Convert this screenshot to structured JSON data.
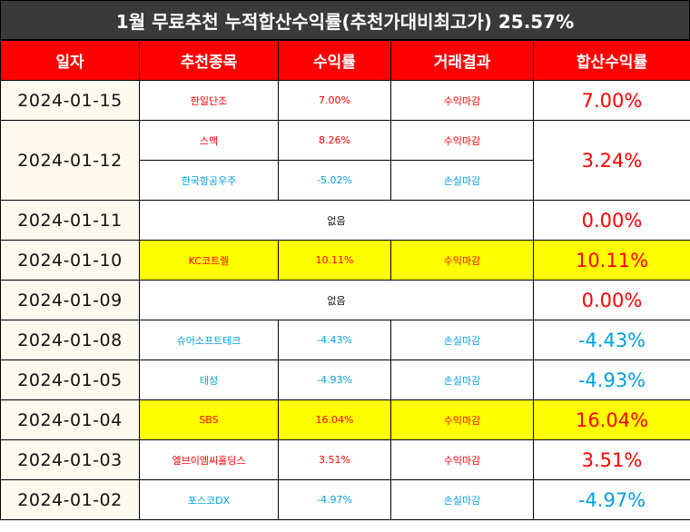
{
  "title": "1월 무료추천 누적합산수익률(추천가대비최고가) 25.57%",
  "headers": [
    "일자",
    "추천종목",
    "수익률",
    "거래결과",
    "합산수익률"
  ],
  "rows": [
    {
      "date": "2024-01-15",
      "stock": "한일단조",
      "rate": "7.00%",
      "result": "수익마감",
      "total": "7.00%"
    },
    {
      "date": "2024-01-12",
      "stock": "스맥",
      "rate": "8.26%",
      "result": "수익마감",
      "total": "3.24%"
    },
    {
      "stock": "한국항공우주",
      "rate": "-5.02%",
      "result": "손실마감"
    },
    {
      "date": "2024-01-11",
      "none": "없음",
      "total": "0.00%"
    },
    {
      "date": "2024-01-10",
      "stock": "KC코트렐",
      "rate": "10.11%",
      "result": "수익마감",
      "total": "10.11%"
    },
    {
      "date": "2024-01-09",
      "none": "없음",
      "total": "0.00%"
    },
    {
      "date": "2024-01-08",
      "stock": "슈어소프트테크",
      "rate": "-4.43%",
      "result": "손실마감",
      "total": "-4.43%"
    },
    {
      "date": "2024-01-05",
      "stock": "태성",
      "rate": "-4.93%",
      "result": "손실마감",
      "total": "-4.93%"
    },
    {
      "date": "2024-01-04",
      "stock": "SBS",
      "rate": "16.04%",
      "result": "수익마감",
      "total": "16.04%"
    },
    {
      "date": "2024-01-03",
      "stock": "엘브이엠씨홀딩스",
      "rate": "3.51%",
      "result": "수익마감",
      "total": "3.51%"
    },
    {
      "date": "2024-01-02",
      "stock": "포스코DX",
      "rate": "-4.97%",
      "result": "손실마감",
      "total": "-4.97%"
    }
  ],
  "colors": {
    "header_bg": "#ff0000",
    "title_bg": "#3a3a3a",
    "highlight": "#ffff00",
    "profit": "#ff0000",
    "loss": "#00a0e0"
  }
}
